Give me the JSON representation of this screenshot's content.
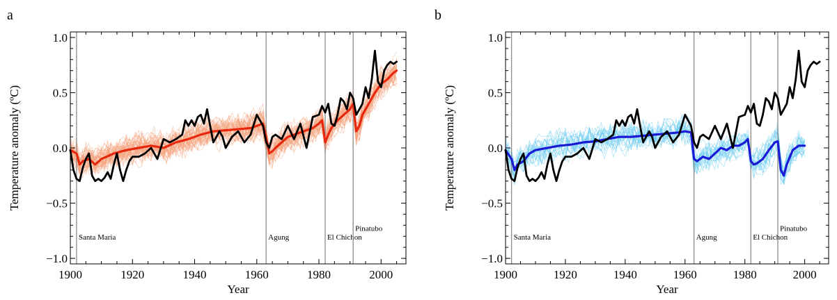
{
  "panels": {
    "a": {
      "letter": "a"
    },
    "b": {
      "letter": "b"
    }
  },
  "colors": {
    "observed": "#000000",
    "all_forcing_ensemble": "#f4a07a",
    "all_forcing_mean": "#e8280e",
    "natural_ensemble": "#5cc6ee",
    "natural_mean": "#1a1ad6",
    "volcano_lines": "#8a8a8a"
  },
  "chart_data": [
    {
      "type": "line",
      "panel": "a",
      "xlabel": "Year",
      "ylabel": "Temperature anomaly (ºC)",
      "xlim": [
        1900,
        2008
      ],
      "ylim": [
        -1.05,
        1.05
      ],
      "xticks": [
        1900,
        1920,
        1940,
        1960,
        1980,
        2000
      ],
      "xtick_labels": [
        "1900",
        "1920",
        "1940",
        "1960",
        "1980",
        "2000"
      ],
      "yticks": [
        -1.0,
        -0.5,
        0.0,
        0.5,
        1.0
      ],
      "ytick_labels": [
        "−1.0",
        "−0.5",
        "0.0",
        "0.5",
        "1.0"
      ],
      "grid": false,
      "volcanoes": [
        {
          "name": "Santa Maria",
          "year": 1902
        },
        {
          "name": "Agung",
          "year": 1963
        },
        {
          "name": "El Chichon",
          "year": 1982
        },
        {
          "name": "Pinatubo",
          "year": 1991
        }
      ],
      "series": [
        {
          "role": "observed",
          "x": [
            1900,
            1901,
            1902,
            1903,
            1904,
            1905,
            1906,
            1907,
            1908,
            1909,
            1910,
            1911,
            1912,
            1913,
            1914,
            1915,
            1916,
            1917,
            1918,
            1919,
            1920,
            1922,
            1924,
            1926,
            1928,
            1930,
            1932,
            1934,
            1936,
            1937,
            1938,
            1939,
            1940,
            1941,
            1942,
            1943,
            1944,
            1945,
            1946,
            1947,
            1948,
            1949,
            1950,
            1952,
            1954,
            1956,
            1958,
            1960,
            1961,
            1962,
            1963,
            1964,
            1965,
            1966,
            1967,
            1968,
            1970,
            1972,
            1974,
            1976,
            1978,
            1980,
            1981,
            1982,
            1983,
            1984,
            1985,
            1986,
            1987,
            1988,
            1989,
            1990,
            1991,
            1992,
            1993,
            1994,
            1995,
            1996,
            1997,
            1998,
            1999,
            2000,
            2001,
            2002,
            2003,
            2004,
            2005
          ],
          "y": [
            -0.02,
            -0.2,
            -0.28,
            -0.3,
            -0.18,
            -0.1,
            -0.05,
            -0.25,
            -0.3,
            -0.28,
            -0.3,
            -0.27,
            -0.22,
            -0.28,
            -0.15,
            -0.05,
            -0.2,
            -0.3,
            -0.2,
            -0.12,
            -0.08,
            -0.08,
            -0.05,
            0.0,
            -0.1,
            0.08,
            0.05,
            0.08,
            0.12,
            0.25,
            0.2,
            0.25,
            0.2,
            0.28,
            0.3,
            0.22,
            0.35,
            0.2,
            0.05,
            0.1,
            0.15,
            0.1,
            0.0,
            0.1,
            0.15,
            0.05,
            0.12,
            0.3,
            0.25,
            0.2,
            0.05,
            0.0,
            0.1,
            0.12,
            0.1,
            0.08,
            0.2,
            0.08,
            0.22,
            0.0,
            0.28,
            0.3,
            0.38,
            0.32,
            0.4,
            0.22,
            0.2,
            0.3,
            0.45,
            0.42,
            0.35,
            0.5,
            0.45,
            0.3,
            0.35,
            0.4,
            0.55,
            0.45,
            0.62,
            0.88,
            0.6,
            0.55,
            0.7,
            0.75,
            0.78,
            0.76,
            0.78
          ]
        },
        {
          "role": "all_forcing_mean",
          "x": [
            1900,
            1902,
            1903,
            1904,
            1906,
            1908,
            1910,
            1914,
            1918,
            1922,
            1926,
            1930,
            1934,
            1938,
            1942,
            1946,
            1950,
            1954,
            1958,
            1960,
            1962,
            1963,
            1964,
            1965,
            1966,
            1968,
            1970,
            1974,
            1978,
            1980,
            1981,
            1982,
            1983,
            1984,
            1986,
            1988,
            1990,
            1991,
            1992,
            1993,
            1994,
            1996,
            1998,
            2000,
            2002,
            2004,
            2005
          ],
          "y": [
            -0.02,
            -0.05,
            -0.15,
            -0.12,
            -0.1,
            -0.15,
            -0.1,
            -0.05,
            -0.02,
            0.0,
            0.02,
            0.0,
            0.05,
            0.08,
            0.12,
            0.15,
            0.16,
            0.17,
            0.18,
            0.2,
            0.22,
            0.1,
            -0.05,
            -0.03,
            0.0,
            0.05,
            0.1,
            0.14,
            0.18,
            0.22,
            0.25,
            0.05,
            0.12,
            0.18,
            0.25,
            0.3,
            0.35,
            0.4,
            0.15,
            0.2,
            0.3,
            0.4,
            0.5,
            0.58,
            0.62,
            0.68,
            0.7
          ]
        }
      ],
      "ensemble": {
        "role": "all_forcing_ensemble",
        "members": 40,
        "spread": 0.16
      }
    },
    {
      "type": "line",
      "panel": "b",
      "xlabel": "Year",
      "ylabel": "Temperature anomaly (ºC)",
      "xlim": [
        1900,
        2008
      ],
      "ylim": [
        -1.05,
        1.05
      ],
      "xticks": [
        1900,
        1920,
        1940,
        1960,
        1980,
        2000
      ],
      "xtick_labels": [
        "1900",
        "1920",
        "1940",
        "1960",
        "1980",
        "2000"
      ],
      "yticks": [
        -1.0,
        -0.5,
        0.0,
        0.5,
        1.0
      ],
      "ytick_labels": [
        "−1.0",
        "−0.5",
        "0.0",
        "0.5",
        "1.0"
      ],
      "grid": false,
      "volcanoes": [
        {
          "name": "Santa Maria",
          "year": 1902
        },
        {
          "name": "Agung",
          "year": 1963
        },
        {
          "name": "El Chichon",
          "year": 1982
        },
        {
          "name": "Pinatubo",
          "year": 1991
        }
      ],
      "series": [
        {
          "role": "observed",
          "x": [
            1900,
            1901,
            1902,
            1903,
            1904,
            1905,
            1906,
            1907,
            1908,
            1909,
            1910,
            1911,
            1912,
            1913,
            1914,
            1915,
            1916,
            1917,
            1918,
            1919,
            1920,
            1922,
            1924,
            1926,
            1928,
            1930,
            1932,
            1934,
            1936,
            1937,
            1938,
            1939,
            1940,
            1941,
            1942,
            1943,
            1944,
            1945,
            1946,
            1947,
            1948,
            1949,
            1950,
            1952,
            1954,
            1956,
            1958,
            1960,
            1961,
            1962,
            1963,
            1964,
            1965,
            1966,
            1967,
            1968,
            1970,
            1972,
            1974,
            1976,
            1978,
            1980,
            1981,
            1982,
            1983,
            1984,
            1985,
            1986,
            1987,
            1988,
            1989,
            1990,
            1991,
            1992,
            1993,
            1994,
            1995,
            1996,
            1997,
            1998,
            1999,
            2000,
            2001,
            2002,
            2003,
            2004,
            2005
          ],
          "y": [
            -0.02,
            -0.2,
            -0.28,
            -0.3,
            -0.18,
            -0.1,
            -0.05,
            -0.25,
            -0.3,
            -0.28,
            -0.3,
            -0.27,
            -0.22,
            -0.28,
            -0.15,
            -0.05,
            -0.2,
            -0.3,
            -0.2,
            -0.12,
            -0.08,
            -0.08,
            -0.05,
            0.0,
            -0.1,
            0.08,
            0.05,
            0.08,
            0.12,
            0.25,
            0.2,
            0.25,
            0.2,
            0.28,
            0.3,
            0.22,
            0.35,
            0.2,
            0.05,
            0.1,
            0.15,
            0.1,
            0.0,
            0.1,
            0.15,
            0.05,
            0.12,
            0.3,
            0.25,
            0.2,
            0.05,
            0.0,
            0.1,
            0.12,
            0.1,
            0.08,
            0.2,
            0.08,
            0.22,
            0.0,
            0.28,
            0.3,
            0.38,
            0.32,
            0.4,
            0.22,
            0.2,
            0.3,
            0.45,
            0.42,
            0.35,
            0.5,
            0.45,
            0.3,
            0.35,
            0.4,
            0.55,
            0.45,
            0.62,
            0.88,
            0.6,
            0.55,
            0.7,
            0.75,
            0.78,
            0.76,
            0.78
          ]
        },
        {
          "role": "natural_mean",
          "x": [
            1900,
            1902,
            1903,
            1904,
            1906,
            1908,
            1910,
            1914,
            1918,
            1922,
            1926,
            1930,
            1934,
            1938,
            1942,
            1946,
            1950,
            1954,
            1958,
            1960,
            1962,
            1963,
            1964,
            1966,
            1968,
            1970,
            1972,
            1974,
            1976,
            1978,
            1980,
            1981,
            1982,
            1983,
            1984,
            1986,
            1988,
            1990,
            1991,
            1992,
            1993,
            1994,
            1996,
            1998,
            2000
          ],
          "y": [
            -0.02,
            -0.1,
            -0.2,
            -0.15,
            -0.12,
            -0.05,
            -0.02,
            0.0,
            0.02,
            0.03,
            0.05,
            0.06,
            0.08,
            0.1,
            0.1,
            0.11,
            0.12,
            0.13,
            0.14,
            0.15,
            0.14,
            -0.1,
            -0.12,
            -0.08,
            -0.1,
            -0.05,
            0.0,
            -0.02,
            0.02,
            0.02,
            0.05,
            0.08,
            -0.12,
            -0.15,
            -0.14,
            -0.1,
            -0.02,
            0.05,
            0.06,
            -0.2,
            -0.25,
            -0.15,
            -0.02,
            0.02,
            0.02
          ]
        }
      ],
      "ensemble": {
        "role": "natural_ensemble",
        "members": 20,
        "spread": 0.16
      }
    }
  ]
}
